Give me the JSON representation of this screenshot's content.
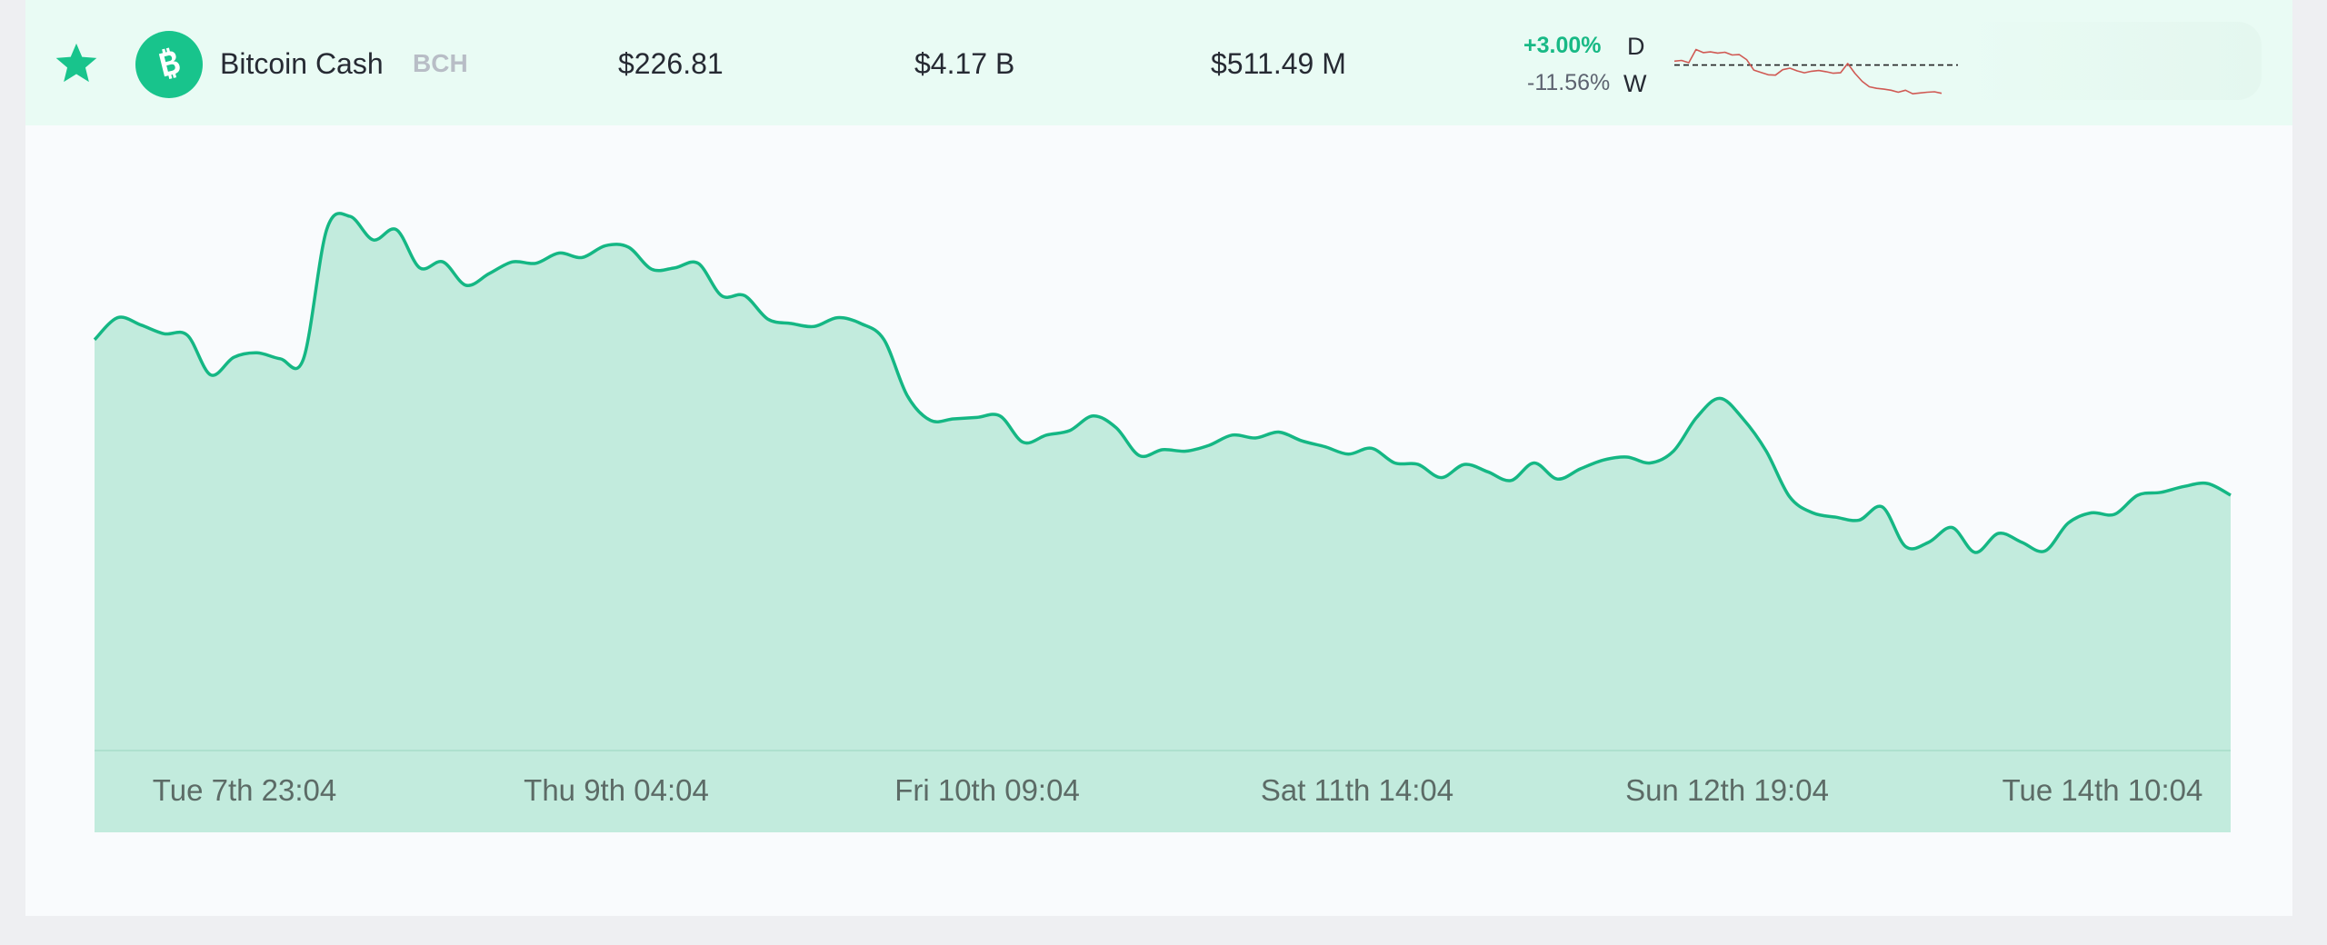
{
  "coin": {
    "name": "Bitcoin Cash",
    "symbol": "BCH",
    "price": "$226.81",
    "market_cap": "$4.17 B",
    "volume": "$511.49 M",
    "change_day": "+3.00%",
    "change_week": "-11.56%",
    "day_label": "D",
    "week_label": "W",
    "icons": {
      "favorite": "star-icon",
      "logo": "bitcoin-cash-logo-icon"
    }
  },
  "colors": {
    "accent": "#18c48c",
    "line": "#15b784",
    "fill": "#c2ebdd",
    "spark_line": "#d05a54",
    "row_bg": "#e9fbf4"
  },
  "chart_data": {
    "type": "area",
    "xlabel": "",
    "ylabel": "",
    "tick_labels": [
      "Tue 7th 23:04",
      "Thu 9th 04:04",
      "Fri 10th 09:04",
      "Sat 11th 14:04",
      "Sun 12th 19:04",
      "Tue 14th 10:04"
    ],
    "ylim": [
      205,
      245
    ],
    "grid": false,
    "values": [
      233.0,
      234.5,
      234.0,
      233.4,
      233.3,
      230.6,
      231.8,
      232.1,
      231.7,
      231.7,
      240.5,
      241.4,
      239.8,
      240.5,
      237.9,
      238.3,
      236.7,
      237.5,
      238.3,
      238.2,
      238.9,
      238.6,
      239.4,
      239.3,
      237.8,
      237.9,
      238.2,
      236.0,
      236.0,
      234.4,
      234.1,
      233.9,
      234.5,
      234.1,
      233.0,
      229.2,
      227.5,
      227.6,
      227.7,
      227.8,
      226.0,
      226.5,
      226.8,
      227.8,
      227.0,
      225.1,
      225.5,
      225.4,
      225.8,
      226.5,
      226.3,
      226.7,
      226.1,
      225.7,
      225.2,
      225.6,
      224.6,
      224.5,
      223.6,
      224.5,
      224.0,
      223.4,
      224.6,
      223.5,
      224.2,
      224.8,
      225.0,
      224.6,
      225.4,
      227.7,
      229.0,
      227.6,
      225.4,
      222.3,
      221.2,
      220.9,
      220.7,
      221.6,
      218.9,
      219.2,
      220.2,
      218.5,
      219.8,
      219.2,
      218.6,
      220.5,
      221.2,
      221.1,
      222.4,
      222.6,
      223.0,
      223.2,
      222.4
    ]
  },
  "spark_data": {
    "type": "line",
    "values": [
      1.0,
      1.2,
      0.6,
      4.0,
      3.2,
      3.4,
      3.1,
      3.3,
      2.6,
      2.7,
      1.4,
      -1.3,
      -1.9,
      -2.5,
      -2.6,
      -1.2,
      -0.8,
      -1.5,
      -2.0,
      -1.6,
      -1.4,
      -1.7,
      -2.1,
      -2.0,
      0.4,
      -2.1,
      -4.2,
      -5.6,
      -6.0,
      -6.2,
      -6.5,
      -7.0,
      -6.5,
      -7.4,
      -7.2,
      -7.0,
      -6.9,
      -7.3
    ],
    "baseline": 0
  }
}
